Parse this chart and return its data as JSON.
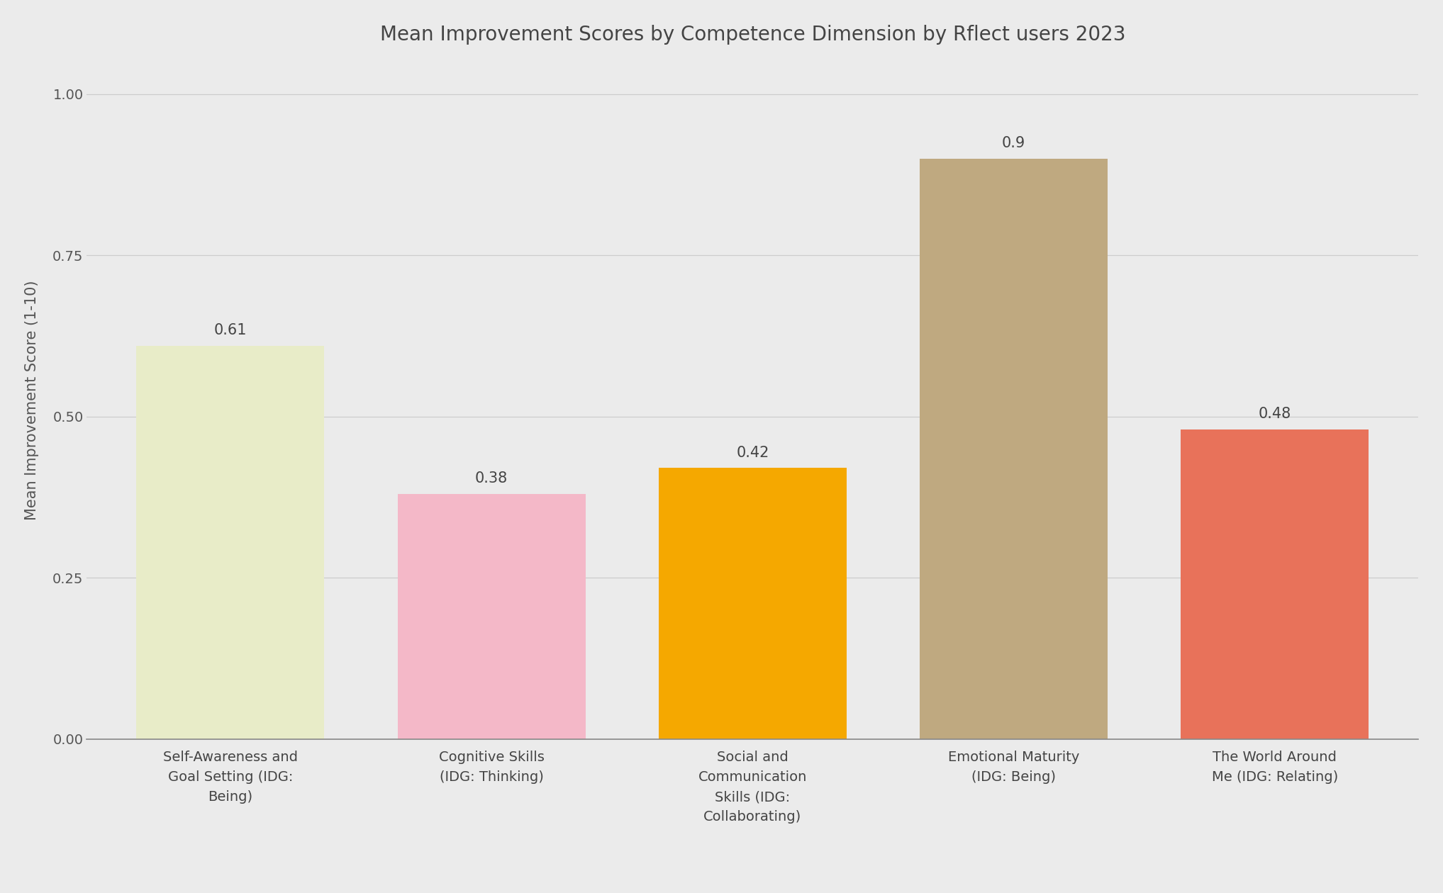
{
  "title": "Mean Improvement Scores by Competence Dimension by Rflect users 2023",
  "categories": [
    "Self-Awareness and\nGoal Setting (IDG:\nBeing)",
    "Cognitive Skills\n(IDG: Thinking)",
    "Social and\nCommunication\nSkills (IDG:\nCollaborating)",
    "Emotional Maturity\n(IDG: Being)",
    "The World Around\nMe (IDG: Relating)"
  ],
  "values": [
    0.61,
    0.38,
    0.42,
    0.9,
    0.48
  ],
  "bar_colors": [
    "#e8ecc8",
    "#f4b8c8",
    "#f5a800",
    "#bfa980",
    "#e8725a"
  ],
  "ylabel": "Mean Improvement Score (1-10)",
  "ylim": [
    0,
    1.05
  ],
  "yticks": [
    0.0,
    0.25,
    0.5,
    0.75,
    1.0
  ],
  "background_color": "#ebebeb",
  "title_fontsize": 20,
  "label_fontsize": 15,
  "tick_fontsize": 14,
  "value_fontsize": 15
}
